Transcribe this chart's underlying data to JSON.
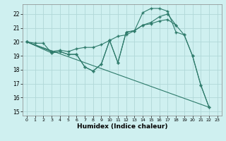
{
  "xlabel": "Humidex (Indice chaleur)",
  "xlim": [
    -0.5,
    23.5
  ],
  "ylim": [
    14.7,
    22.7
  ],
  "yticks": [
    15,
    16,
    17,
    18,
    19,
    20,
    21,
    22
  ],
  "xticks": [
    0,
    1,
    2,
    3,
    4,
    5,
    6,
    7,
    8,
    9,
    10,
    11,
    12,
    13,
    14,
    15,
    16,
    17,
    18,
    19,
    20,
    21,
    22,
    23
  ],
  "bg_color": "#cff0f0",
  "grid_color": "#b0d8d8",
  "line_color": "#2d7a6a",
  "line1": {
    "x": [
      0,
      1,
      2,
      3,
      4,
      5,
      6,
      7,
      8,
      9,
      10,
      11,
      12,
      13,
      14,
      15,
      16,
      17,
      18,
      19,
      20,
      21,
      22
    ],
    "y": [
      20.0,
      19.9,
      19.9,
      19.2,
      19.3,
      19.1,
      19.1,
      18.2,
      17.9,
      18.4,
      20.1,
      18.5,
      20.7,
      20.8,
      22.1,
      22.4,
      22.4,
      22.2,
      20.7,
      20.5,
      19.0,
      16.9,
      15.3
    ]
  },
  "line2": {
    "x": [
      0,
      3,
      4,
      5,
      6,
      7,
      8,
      9,
      10,
      11,
      12,
      13,
      14,
      15,
      16,
      17,
      18
    ],
    "y": [
      20.0,
      19.3,
      19.4,
      19.3,
      19.5,
      19.6,
      19.6,
      19.8,
      20.1,
      20.4,
      20.5,
      20.8,
      21.2,
      21.3,
      21.5,
      21.6,
      21.2
    ]
  },
  "line3": {
    "x": [
      0,
      22
    ],
    "y": [
      20.0,
      15.3
    ]
  },
  "line4": {
    "x": [
      0,
      3,
      4,
      5,
      6,
      7,
      8,
      9,
      10,
      11,
      12,
      13,
      14,
      15,
      16,
      17,
      18,
      19,
      20,
      21,
      22
    ],
    "y": [
      20.0,
      19.2,
      19.3,
      19.1,
      19.1,
      18.2,
      17.9,
      18.4,
      20.1,
      18.5,
      20.7,
      20.8,
      21.2,
      21.4,
      21.8,
      22.0,
      21.2,
      20.5,
      19.0,
      16.9,
      15.3
    ]
  }
}
